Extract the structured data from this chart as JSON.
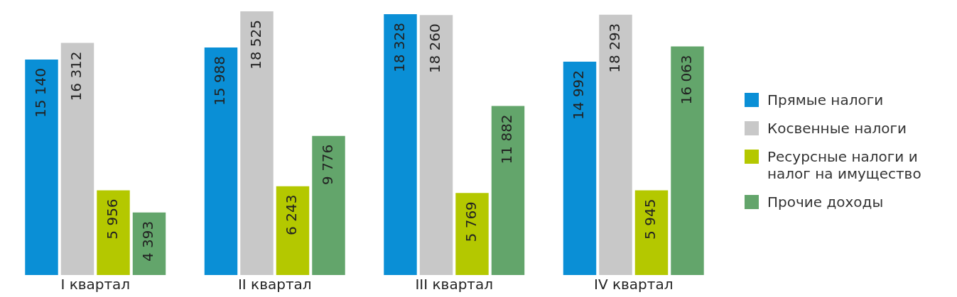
{
  "chart_data": {
    "type": "bar",
    "categories": [
      "I квартал",
      "II квартал",
      "III квартал",
      "IV квартал"
    ],
    "series": [
      {
        "name": "Прямые налоги",
        "color": "#0a8fd6",
        "values": [
          15140,
          15988,
          18328,
          14992
        ]
      },
      {
        "name": "Косвенные налоги",
        "color": "#c8c8c8",
        "values": [
          16312,
          18525,
          18260,
          18293
        ]
      },
      {
        "name": "Ресурсные налоги и налог на имущество",
        "color": "#b4c800",
        "values": [
          5956,
          6243,
          5769,
          5945
        ]
      },
      {
        "name": "Прочие доходы",
        "color": "#63a56b",
        "values": [
          4393,
          9776,
          11882,
          16063
        ]
      }
    ],
    "data_labels": true,
    "legend": "right",
    "grid": false
  }
}
